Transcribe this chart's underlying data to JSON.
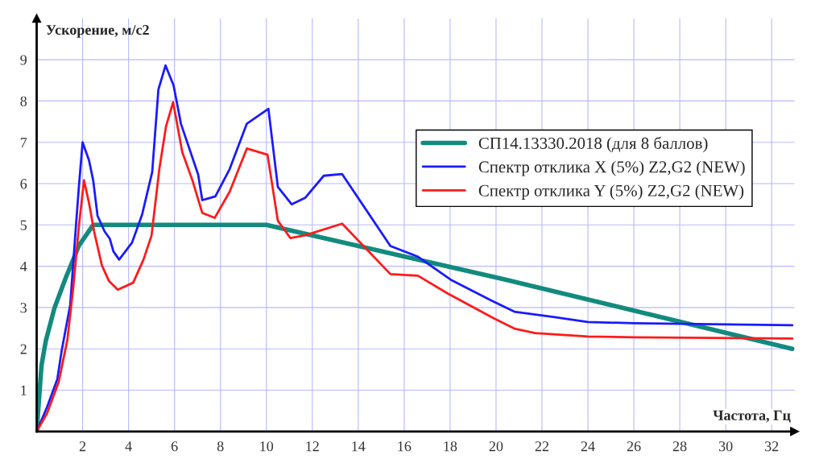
{
  "chart_data": {
    "type": "line",
    "xlabel": "Частота, Гц",
    "ylabel": "Ускорение, м/с2",
    "xlim": [
      0,
      33
    ],
    "ylim": [
      0,
      10
    ],
    "xticks": [
      {
        "value": 0,
        "label": null
      },
      2,
      4,
      6,
      8,
      10,
      12,
      14,
      16,
      18,
      20,
      22,
      24,
      26,
      28,
      30,
      32
    ],
    "yticks": [
      1,
      2,
      3,
      4,
      5,
      6,
      7,
      8,
      9
    ],
    "grid": true,
    "legend": "top right",
    "marker": "none",
    "line_style": "solid",
    "series": [
      {
        "name": "СП14.13330.2018 (для 8 баллов)",
        "color": "#138a7e",
        "x": [
          0,
          0.21,
          0.4,
          0.78,
          1.28,
          1.84,
          2.46,
          10,
          20.3,
          32.9
        ],
        "values": [
          0,
          1.6,
          2.2,
          3.0,
          3.74,
          4.5,
          5.0,
          5.0,
          3.69,
          2.0
        ]
      },
      {
        "name": "Спектр отклика X (5%) Z2,G2 (NEW)",
        "color": "#1a1aff",
        "x": [
          0,
          0.46,
          0.9,
          1.09,
          1.46,
          1.71,
          1.84,
          2.0,
          2.28,
          2.46,
          2.65,
          2.96,
          3.18,
          3.34,
          3.59,
          4.15,
          4.59,
          5.03,
          5.3,
          5.61,
          5.96,
          6.28,
          7.03,
          7.21,
          7.78,
          8.4,
          9.15,
          10.09,
          10.5,
          11.1,
          11.7,
          12.5,
          13.3,
          15.4,
          16.6,
          18.07,
          19.8,
          20.8,
          22.5,
          24,
          26,
          32.9
        ],
        "values": [
          0,
          0.6,
          1.27,
          1.96,
          3.06,
          4.98,
          5.94,
          7.0,
          6.56,
          6.08,
          5.22,
          4.84,
          4.67,
          4.36,
          4.16,
          4.57,
          5.25,
          6.28,
          8.28,
          8.86,
          8.38,
          7.45,
          6.22,
          5.6,
          5.69,
          6.35,
          7.45,
          7.81,
          5.92,
          5.5,
          5.66,
          6.19,
          6.23,
          4.49,
          4.23,
          3.66,
          3.17,
          2.9,
          2.77,
          2.65,
          2.62,
          2.57
        ]
      },
      {
        "name": "Спектр отклика Y (5%) Z2,G2 (NEW)",
        "color": "#ff1a1a",
        "x": [
          0,
          0.46,
          0.96,
          1.34,
          1.59,
          1.84,
          2.06,
          2.28,
          2.5,
          2.84,
          3.15,
          3.53,
          4.2,
          4.65,
          5.0,
          5.34,
          5.63,
          5.94,
          6.34,
          6.78,
          7.21,
          7.75,
          8.4,
          9.15,
          10.05,
          10.5,
          11.05,
          11.7,
          13.3,
          15.4,
          16.6,
          17.9,
          19.9,
          20.8,
          21.7,
          24,
          26,
          32.9
        ],
        "values": [
          0,
          0.45,
          1.2,
          2.23,
          3.47,
          4.98,
          6.08,
          5.53,
          4.84,
          4.02,
          3.64,
          3.43,
          3.6,
          4.16,
          4.74,
          6.35,
          7.38,
          7.97,
          6.76,
          6.08,
          5.29,
          5.17,
          5.8,
          6.85,
          6.7,
          5.1,
          4.68,
          4.75,
          5.03,
          3.81,
          3.77,
          3.34,
          2.74,
          2.49,
          2.38,
          2.3,
          2.28,
          2.25
        ]
      }
    ]
  }
}
